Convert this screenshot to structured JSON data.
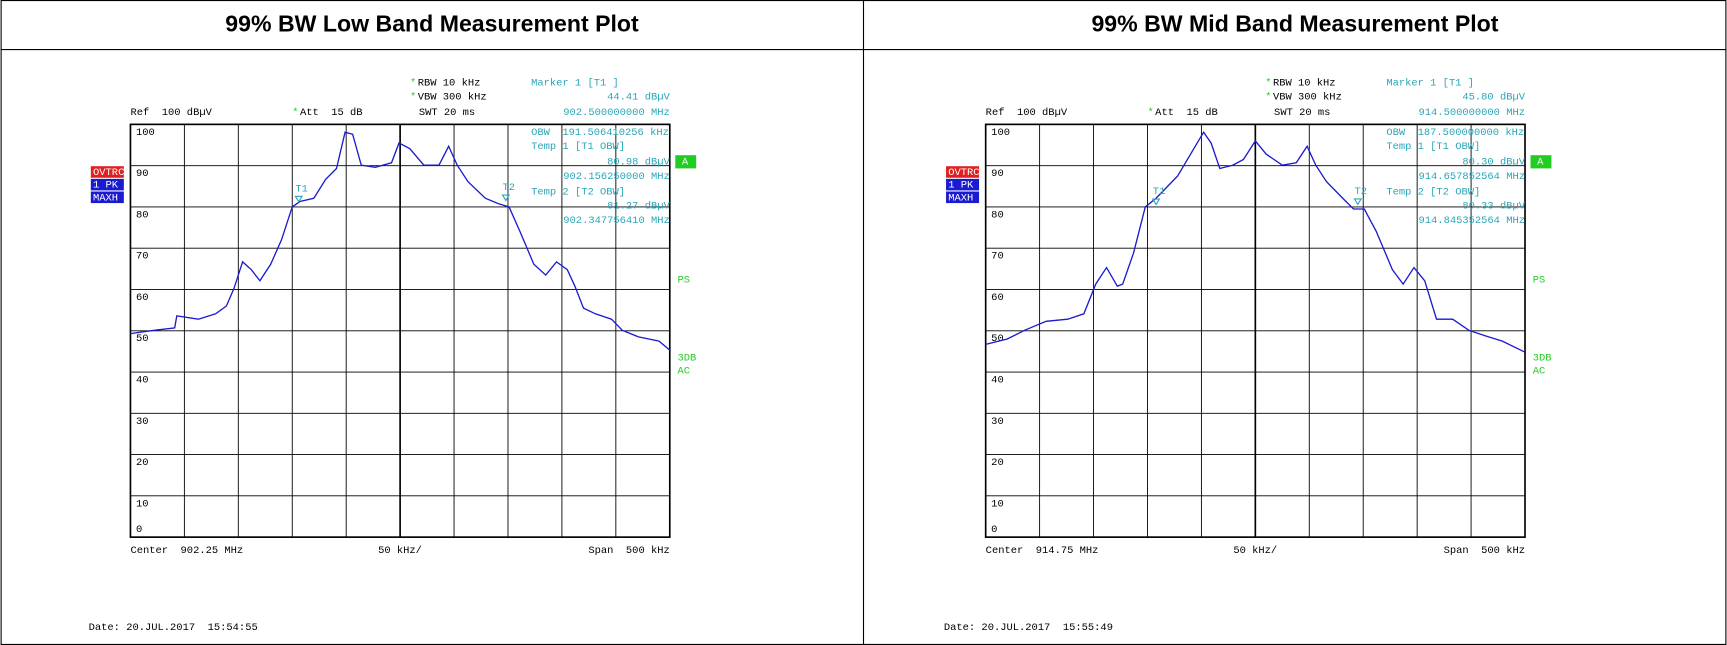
{
  "chart_data": [
    {
      "type": "line",
      "title": "99% BW Low Band Measurement Plot",
      "flag": "*",
      "rbw": "RBW 10 kHz",
      "vbw": "VBW 300 kHz",
      "ref": "Ref  100 dBµV",
      "att": "Att  15 dB",
      "swt": "SWT 20 ms",
      "marker_info": [
        "Marker 1 [T1 ]",
        "44.41 dBµV",
        "902.500000000 MHz"
      ],
      "obw_info": [
        "OBW  191.506410256 kHz",
        "Temp 1 [T1 OBW]",
        "80.98 dBµV",
        "902.156250000 MHz",
        "Temp 2 [T2 OBW]",
        "81.27 dBµV",
        "902.347756410 MHz"
      ],
      "left_labels": [
        "OVTRC",
        "1 PK",
        "MAXH"
      ],
      "right_labels": [
        "A",
        "PS",
        "3DB",
        "AC"
      ],
      "center": "Center  902.25 MHz",
      "div": "50 kHz/",
      "span": "Span  500 kHz",
      "date": "Date: 20.JUL.2017  15:54:55",
      "markers": [
        {
          "label": "T1",
          "x": 902.156,
          "y": 80.98
        },
        {
          "label": "T2",
          "x": 902.348,
          "y": 81.27
        }
      ],
      "color": "#1a1ad0",
      "grid": true,
      "xlim": [
        902.0,
        902.5
      ],
      "ylim": [
        0,
        100
      ],
      "yticks": [
        0,
        10,
        20,
        30,
        40,
        50,
        60,
        70,
        80,
        90,
        100
      ],
      "x": [
        902.0,
        902.022,
        902.041,
        902.043,
        902.063,
        902.079,
        902.089,
        902.096,
        902.104,
        902.112,
        902.12,
        902.13,
        902.14,
        902.15,
        902.157,
        902.17,
        902.181,
        902.191,
        902.199,
        902.206,
        902.214,
        902.227,
        902.242,
        902.249,
        902.259,
        902.272,
        902.286,
        902.295,
        902.303,
        902.313,
        902.329,
        902.341,
        902.351,
        902.361,
        902.374,
        902.385,
        902.395,
        902.405,
        902.412,
        902.42,
        902.431,
        902.446,
        902.456,
        902.471,
        902.49,
        902.5
      ],
      "values": [
        49.3,
        50.1,
        50.7,
        53.6,
        52.8,
        54.1,
        56.0,
        60.3,
        66.7,
        64.8,
        62.1,
        66.1,
        72.0,
        80.0,
        81.3,
        82.1,
        86.7,
        89.3,
        98.1,
        97.6,
        90.1,
        89.6,
        90.7,
        95.5,
        94.1,
        90.1,
        90.1,
        94.7,
        90.1,
        86.1,
        82.1,
        80.8,
        80.0,
        74.1,
        66.1,
        63.5,
        66.7,
        64.8,
        60.8,
        55.5,
        54.1,
        52.8,
        50.1,
        48.5,
        47.5,
        45.3
      ]
    },
    {
      "type": "line",
      "title": "99% BW Mid Band Measurement Plot",
      "flag": "*",
      "rbw": "RBW 10 kHz",
      "vbw": "VBW 300 kHz",
      "ref": "Ref  100 dBµV",
      "att": "Att  15 dB",
      "swt": "SWT 20 ms",
      "marker_info": [
        "Marker 1 [T1 ]",
        "45.80 dBµV",
        "914.500000000 MHz"
      ],
      "obw_info": [
        "OBW  187.500000000 kHz",
        "Temp 1 [T1 OBW]",
        "80.30 dBµV",
        "914.657852564 MHz",
        "Temp 2 [T2 OBW]",
        "80.33 dBµV",
        "914.845352564 MHz"
      ],
      "left_labels": [
        "OVTRC",
        "1 PK",
        "MAXH"
      ],
      "right_labels": [
        "A",
        "PS",
        "3DB",
        "AC"
      ],
      "center": "Center  914.75 MHz",
      "div": "50 kHz/",
      "span": "Span  500 kHz",
      "date": "Date: 20.JUL.2017  15:55:49",
      "markers": [
        {
          "label": "T1",
          "x": 914.658,
          "y": 80.3
        },
        {
          "label": "T2",
          "x": 914.845,
          "y": 80.33
        }
      ],
      "color": "#1a1ad0",
      "grid": true,
      "xlim": [
        914.5,
        915.0
      ],
      "ylim": [
        0,
        100
      ],
      "yticks": [
        0,
        10,
        20,
        30,
        40,
        50,
        60,
        70,
        80,
        90,
        100
      ],
      "x": [
        914.5,
        914.52,
        914.536,
        914.556,
        914.576,
        914.591,
        914.602,
        914.612,
        914.622,
        914.627,
        914.637,
        914.648,
        914.658,
        914.668,
        914.678,
        914.693,
        914.702,
        914.709,
        914.717,
        914.729,
        914.739,
        914.75,
        914.76,
        914.775,
        914.788,
        914.798,
        914.806,
        914.816,
        914.831,
        914.841,
        914.851,
        914.862,
        914.877,
        914.887,
        914.897,
        914.907,
        914.918,
        914.933,
        914.948,
        914.963,
        914.979,
        915.0
      ],
      "values": [
        46.7,
        48.0,
        50.1,
        52.3,
        52.8,
        54.1,
        61.3,
        65.3,
        60.8,
        61.3,
        68.8,
        80.0,
        82.1,
        84.8,
        87.5,
        94.1,
        98.1,
        95.5,
        89.3,
        90.1,
        91.5,
        96.0,
        92.8,
        90.1,
        90.7,
        94.7,
        90.1,
        86.1,
        82.1,
        79.5,
        79.5,
        74.1,
        64.8,
        61.3,
        65.3,
        62.1,
        52.8,
        52.8,
        50.1,
        48.8,
        47.5,
        44.8
      ]
    }
  ]
}
